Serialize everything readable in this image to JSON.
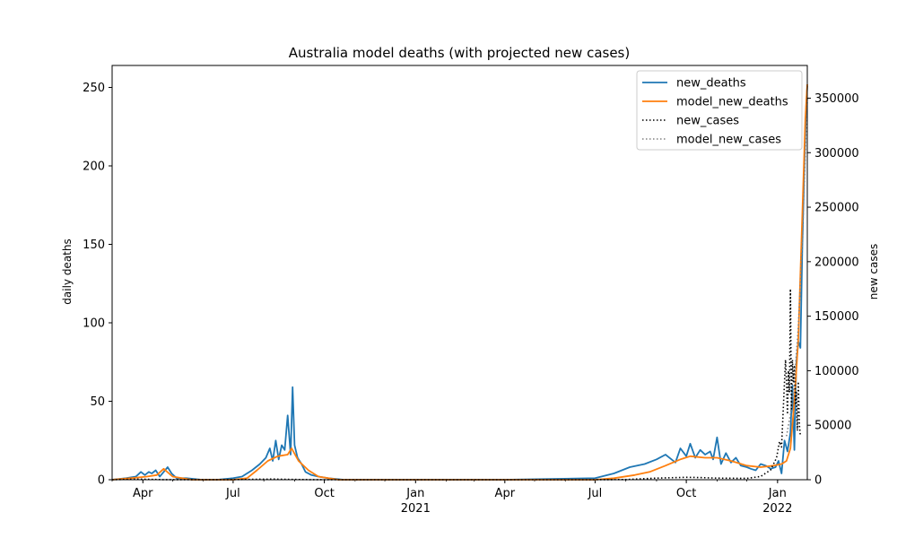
{
  "chart_data": {
    "type": "line",
    "title": "Australia model deaths (with projected new cases)",
    "ylabel": "daily deaths",
    "y2label": "new cases",
    "xlim": [
      "2020-03-01",
      "2022-01-31"
    ],
    "ylim": [
      0,
      264
    ],
    "y2lim": [
      0,
      380000
    ],
    "y_ticks": [
      0,
      50,
      100,
      150,
      200,
      250
    ],
    "y2_ticks": [
      0,
      50000,
      100000,
      150000,
      200000,
      250000,
      300000,
      350000
    ],
    "y_tick_labels": [
      "0",
      "50",
      "100",
      "150",
      "200",
      "250"
    ],
    "y2_tick_labels": [
      "0",
      "50000",
      "100000",
      "150000",
      "200000",
      "250000",
      "300000",
      "350000"
    ],
    "x_ticks": [
      {
        "date": "2020-04-01",
        "label": "Apr",
        "year": ""
      },
      {
        "date": "2020-07-01",
        "label": "Jul",
        "year": ""
      },
      {
        "date": "2020-10-01",
        "label": "Oct",
        "year": ""
      },
      {
        "date": "2021-01-01",
        "label": "Jan",
        "year": "2021"
      },
      {
        "date": "2021-04-01",
        "label": "Apr",
        "year": ""
      },
      {
        "date": "2021-07-01",
        "label": "Jul",
        "year": ""
      },
      {
        "date": "2021-10-01",
        "label": "Oct",
        "year": ""
      },
      {
        "date": "2022-01-01",
        "label": "Jan",
        "year": "2022"
      }
    ],
    "legend": {
      "position": "top-right",
      "entries": [
        {
          "label": "new_deaths",
          "color": "#1f77b4",
          "style": "solid"
        },
        {
          "label": "model_new_deaths",
          "color": "#ff7f0e",
          "style": "solid"
        },
        {
          "label": "new_cases",
          "color": "#000000",
          "style": "dotted"
        },
        {
          "label": "model_new_cases",
          "color": "#808080",
          "style": "dotted"
        }
      ]
    },
    "series": [
      {
        "name": "new_deaths",
        "axis": "left",
        "color": "#1f77b4",
        "style": "solid",
        "x": [
          "2020-03-01",
          "2020-03-15",
          "2020-03-25",
          "2020-03-30",
          "2020-04-03",
          "2020-04-07",
          "2020-04-10",
          "2020-04-14",
          "2020-04-18",
          "2020-04-22",
          "2020-04-26",
          "2020-04-30",
          "2020-05-05",
          "2020-05-15",
          "2020-05-30",
          "2020-06-15",
          "2020-07-01",
          "2020-07-10",
          "2020-07-20",
          "2020-07-28",
          "2020-08-03",
          "2020-08-07",
          "2020-08-10",
          "2020-08-13",
          "2020-08-16",
          "2020-08-19",
          "2020-08-22",
          "2020-08-25",
          "2020-08-28",
          "2020-08-30",
          "2020-09-01",
          "2020-09-04",
          "2020-09-08",
          "2020-09-12",
          "2020-09-18",
          "2020-09-25",
          "2020-10-05",
          "2020-10-20",
          "2020-11-15",
          "2021-01-01",
          "2021-04-01",
          "2021-07-01",
          "2021-07-20",
          "2021-08-05",
          "2021-08-20",
          "2021-09-01",
          "2021-09-10",
          "2021-09-20",
          "2021-09-25",
          "2021-10-01",
          "2021-10-05",
          "2021-10-10",
          "2021-10-15",
          "2021-10-20",
          "2021-10-25",
          "2021-10-28",
          "2021-11-01",
          "2021-11-05",
          "2021-11-10",
          "2021-11-15",
          "2021-11-20",
          "2021-11-25",
          "2021-12-01",
          "2021-12-05",
          "2021-12-10",
          "2021-12-15",
          "2021-12-20",
          "2021-12-25",
          "2021-12-30",
          "2022-01-02",
          "2022-01-05",
          "2022-01-08",
          "2022-01-11",
          "2022-01-14",
          "2022-01-16",
          "2022-01-18",
          "2022-01-20",
          "2022-01-22",
          "2022-01-24",
          "2022-01-26",
          "2022-01-28",
          "2022-01-30",
          "2022-01-31"
        ],
        "values": [
          0,
          1,
          2,
          5,
          3,
          5,
          4,
          6,
          2,
          5,
          8,
          4,
          1,
          1,
          0,
          0,
          1,
          2,
          6,
          10,
          14,
          20,
          12,
          25,
          13,
          22,
          19,
          41,
          16,
          59,
          22,
          14,
          10,
          5,
          3,
          2,
          1,
          0,
          0,
          0,
          0,
          1,
          4,
          8,
          10,
          13,
          16,
          11,
          20,
          15,
          23,
          14,
          19,
          16,
          18,
          13,
          27,
          10,
          17,
          11,
          14,
          9,
          8,
          7,
          6,
          10,
          9,
          7,
          8,
          12,
          4,
          25,
          18,
          30,
          60,
          19,
          75,
          88,
          84,
          150,
          200,
          240,
          251
        ]
      },
      {
        "name": "model_new_deaths",
        "axis": "left",
        "color": "#ff7f0e",
        "style": "solid",
        "x": [
          "2020-03-01",
          "2020-03-20",
          "2020-04-05",
          "2020-04-15",
          "2020-04-22",
          "2020-05-01",
          "2020-05-20",
          "2020-07-01",
          "2020-07-15",
          "2020-07-25",
          "2020-08-05",
          "2020-08-15",
          "2020-08-25",
          "2020-08-29",
          "2020-09-05",
          "2020-09-15",
          "2020-09-25",
          "2020-10-15",
          "2020-11-15",
          "2021-01-01",
          "2021-04-01",
          "2021-07-01",
          "2021-07-20",
          "2021-08-10",
          "2021-08-25",
          "2021-09-10",
          "2021-09-25",
          "2021-10-05",
          "2021-10-20",
          "2021-11-01",
          "2021-11-15",
          "2021-12-01",
          "2021-12-15",
          "2021-12-28",
          "2022-01-05",
          "2022-01-10",
          "2022-01-14",
          "2022-01-18",
          "2022-01-22",
          "2022-01-26",
          "2022-01-29",
          "2022-01-31"
        ],
        "values": [
          0,
          1,
          2,
          3,
          7,
          2,
          0,
          0,
          1,
          6,
          12,
          15,
          16,
          20,
          12,
          6,
          2,
          0,
          0,
          0,
          0,
          0,
          1,
          3,
          5,
          9,
          13,
          15,
          14,
          14,
          12,
          9,
          8,
          9,
          10,
          12,
          20,
          50,
          90,
          170,
          230,
          252
        ]
      },
      {
        "name": "new_cases",
        "axis": "right",
        "color": "#000000",
        "style": "dotted",
        "x": [
          "2020-03-01",
          "2020-03-25",
          "2020-04-05",
          "2020-04-20",
          "2020-05-01",
          "2020-07-01",
          "2020-07-25",
          "2020-08-10",
          "2020-08-25",
          "2020-09-15",
          "2020-10-01",
          "2021-01-01",
          "2021-04-01",
          "2021-07-01",
          "2021-08-01",
          "2021-09-01",
          "2021-09-15",
          "2021-10-01",
          "2021-10-15",
          "2021-11-01",
          "2021-12-01",
          "2021-12-15",
          "2021-12-25",
          "2021-12-31",
          "2022-01-03",
          "2022-01-05",
          "2022-01-07",
          "2022-01-09",
          "2022-01-10",
          "2022-01-11",
          "2022-01-12",
          "2022-01-13",
          "2022-01-14",
          "2022-01-15",
          "2022-01-16",
          "2022-01-17",
          "2022-01-18",
          "2022-01-19",
          "2022-01-20",
          "2022-01-21",
          "2022-01-22",
          "2022-01-23",
          "2022-01-24"
        ],
        "values": [
          0,
          500,
          400,
          100,
          50,
          50,
          400,
          600,
          300,
          50,
          10,
          20,
          10,
          20,
          200,
          1500,
          1800,
          2200,
          2000,
          1500,
          1200,
          3000,
          9000,
          20000,
          35000,
          30000,
          70000,
          110000,
          90000,
          60000,
          100000,
          80000,
          175000,
          65000,
          110000,
          90000,
          105000,
          70000,
          80000,
          45000,
          90000,
          50000,
          40000
        ]
      },
      {
        "name": "model_new_cases",
        "axis": "right",
        "color": "#808080",
        "style": "dotted",
        "x": [
          "2022-01-10",
          "2022-01-14",
          "2022-01-18",
          "2022-01-22",
          "2022-01-26",
          "2022-01-29",
          "2022-01-31"
        ],
        "values": [
          40000,
          60000,
          90000,
          140000,
          220000,
          300000,
          350000
        ]
      }
    ]
  }
}
